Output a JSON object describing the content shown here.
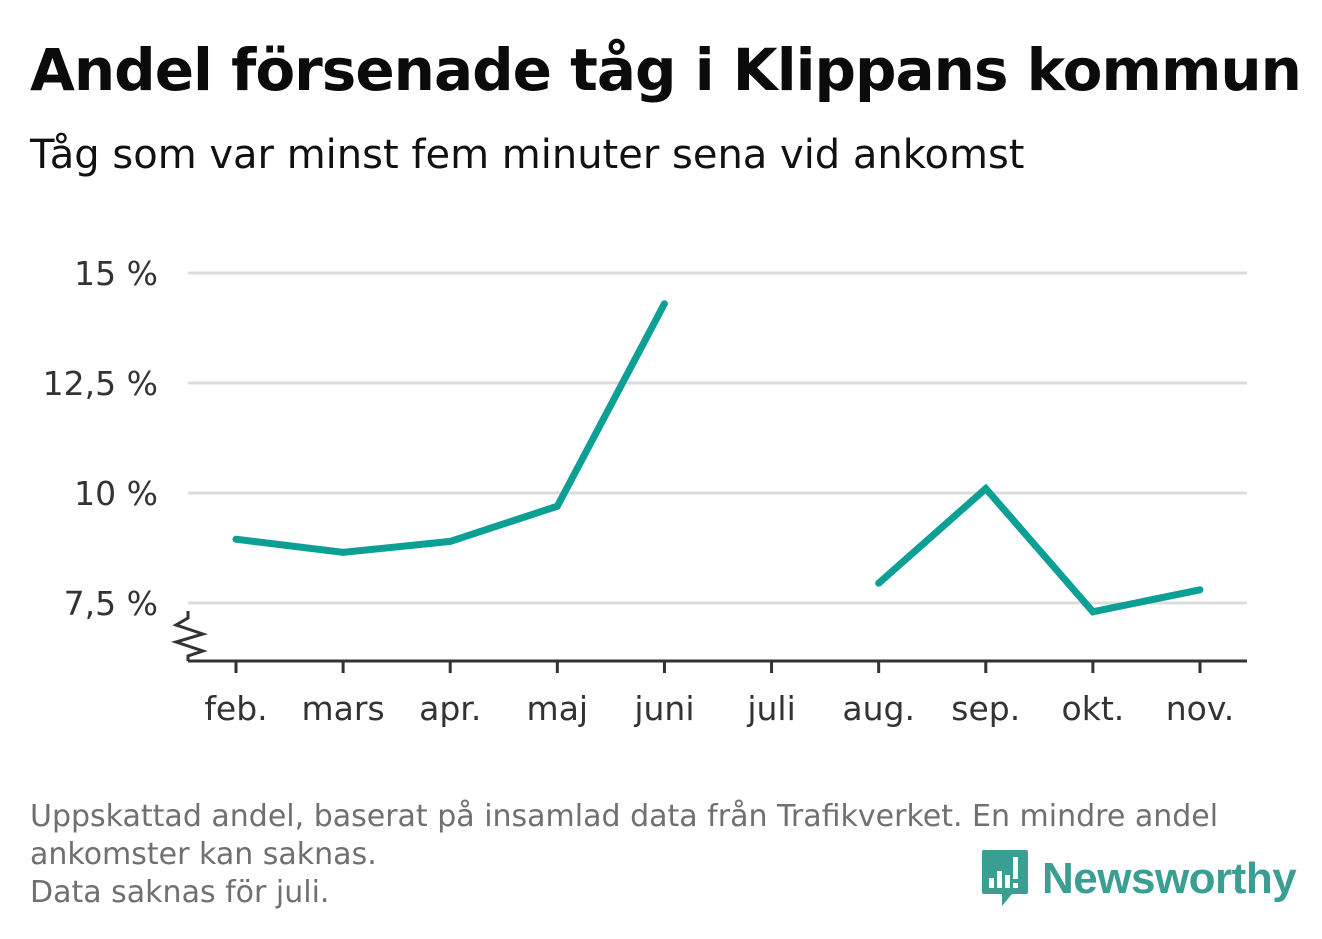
{
  "title": "Andel försenade tåg i Klippans kommun",
  "subtitle": "Tåg som var minst fem minuter sena vid ankomst",
  "footnote": {
    "line1": "Uppskattad andel, baserat på insamlad data från Trafikverket. En mindre andel",
    "line2": "ankomster kan saknas.",
    "line3": "Data saknas för juli."
  },
  "logo": {
    "text": "Newsworthy",
    "color": "#3b9e93",
    "icon": "newsworthy-chart-icon"
  },
  "chart_data": {
    "type": "line",
    "categories": [
      "feb.",
      "mars",
      "apr.",
      "maj",
      "juni",
      "juli",
      "aug.",
      "sep.",
      "okt.",
      "nov."
    ],
    "series": [
      {
        "values": [
          8.95,
          8.65,
          8.9,
          9.7,
          14.3,
          null,
          7.95,
          10.1,
          7.3,
          7.8
        ],
        "color": "#0ca095"
      }
    ],
    "ylim": [
      6.2,
      15
    ],
    "yticks": [
      7.5,
      10,
      12.5,
      15
    ],
    "ytick_labels": [
      "7,5 %",
      "10 %",
      "12,5 %",
      "15 %"
    ],
    "xlabel": "",
    "ylabel": "",
    "grid": true,
    "axis_break": true
  }
}
